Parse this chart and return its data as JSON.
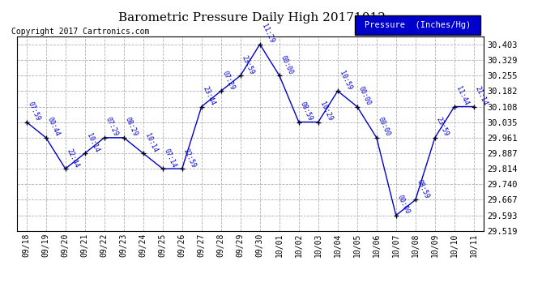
{
  "title": "Barometric Pressure Daily High 20171012",
  "copyright": "Copyright 2017 Cartronics.com",
  "legend_label": "Pressure  (Inches/Hg)",
  "x_labels": [
    "09/18",
    "09/19",
    "09/20",
    "09/21",
    "09/22",
    "09/23",
    "09/24",
    "09/25",
    "09/26",
    "09/27",
    "09/28",
    "09/29",
    "09/30",
    "10/01",
    "10/02",
    "10/03",
    "10/04",
    "10/05",
    "10/06",
    "10/07",
    "10/08",
    "10/09",
    "10/10",
    "10/11"
  ],
  "y_values": [
    30.035,
    29.961,
    29.814,
    29.887,
    29.961,
    29.961,
    29.887,
    29.814,
    29.814,
    30.108,
    30.182,
    30.255,
    30.403,
    30.255,
    30.035,
    30.035,
    30.182,
    30.108,
    29.961,
    29.593,
    29.667,
    29.961,
    30.108,
    30.108
  ],
  "time_labels": [
    "07:59",
    "00:44",
    "22:44",
    "10:14",
    "07:29",
    "08:29",
    "10:14",
    "07:14",
    "22:59",
    "23:44",
    "07:29",
    "23:59",
    "11:29",
    "00:00",
    "08:59",
    "10:29",
    "10:59",
    "00:00",
    "00:00",
    "00:00",
    "08:59",
    "23:59",
    "11:44",
    "21:14"
  ],
  "y_ticks": [
    29.519,
    29.593,
    29.667,
    29.74,
    29.814,
    29.887,
    29.961,
    30.035,
    30.108,
    30.182,
    30.255,
    30.329,
    30.403
  ],
  "ylim_min": 29.519,
  "ylim_max": 30.44,
  "line_color": "#0000cc",
  "marker_color": "#000000",
  "bg_color": "#ffffff",
  "plot_bg_color": "#ffffff",
  "grid_color": "#b0b0b0",
  "title_color": "#000000",
  "label_color": "#0000cc",
  "copyright_color": "#000000",
  "legend_bg": "#0000cc",
  "legend_text_color": "#ffffff"
}
